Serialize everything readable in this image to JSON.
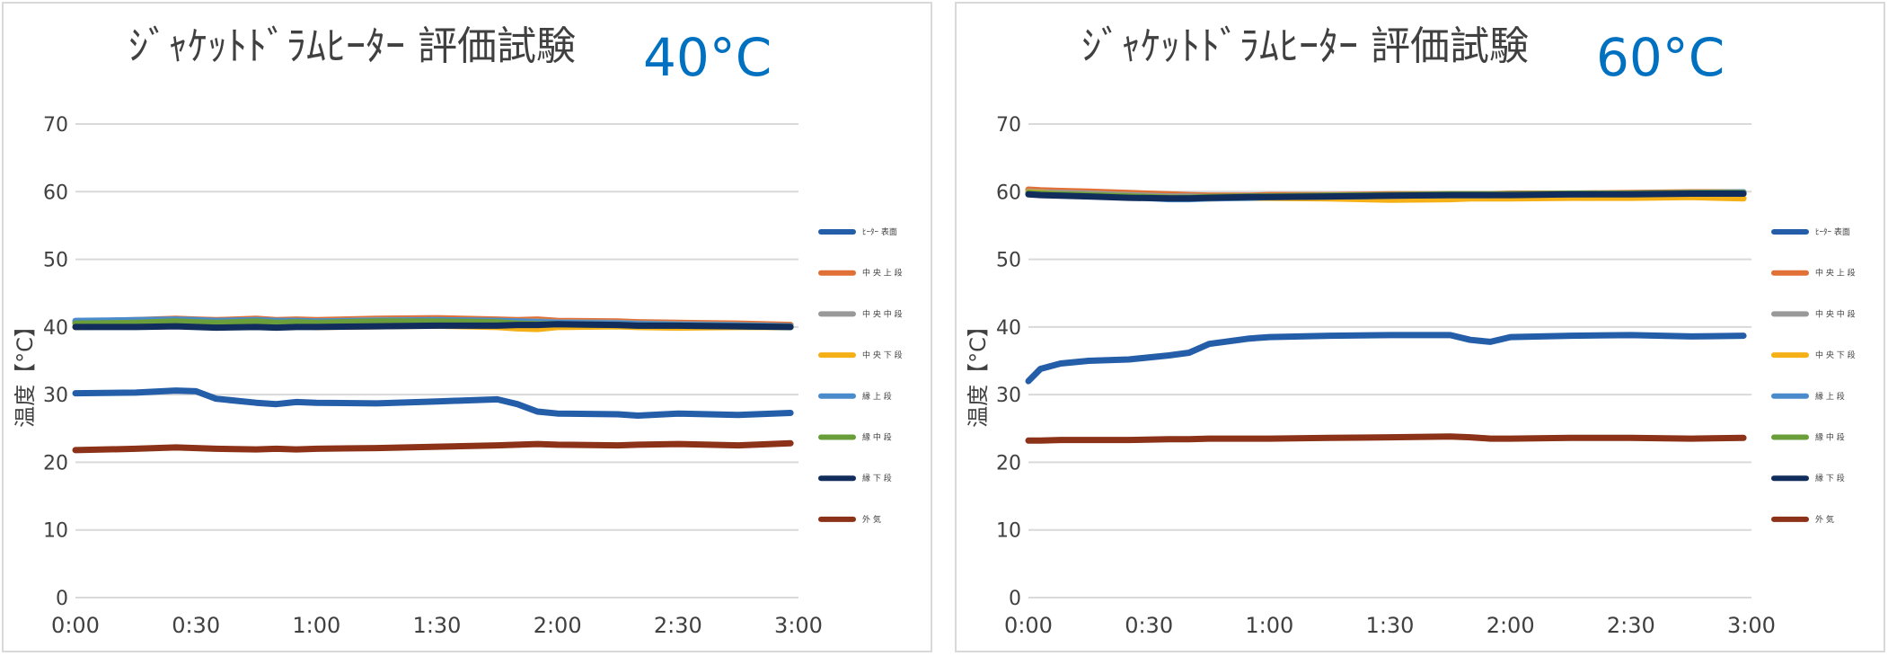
{
  "chart_data": [
    {
      "type": "line",
      "title": "ｼﾞｬｹｯﾄﾄﾞﾗﾑﾋｰﾀｰ 評価試験",
      "title_temp": "40°C",
      "ylabel": "温度【°C】",
      "xlabel": "",
      "ylim": [
        0,
        70
      ],
      "y_ticks": [
        "0",
        "10",
        "20",
        "30",
        "40",
        "50",
        "60",
        "70"
      ],
      "x_ticks": [
        "0:00",
        "0:30",
        "1:00",
        "1:30",
        "2:00",
        "2:30",
        "3:00"
      ],
      "xlim_minutes": [
        0,
        180
      ],
      "grid": "horizontal",
      "legend_position": "right",
      "x_minutes": [
        0,
        15,
        25,
        30,
        35,
        45,
        50,
        55,
        60,
        75,
        90,
        105,
        110,
        115,
        120,
        135,
        140,
        150,
        165,
        178
      ],
      "series": [
        {
          "name": "ﾋｰﾀｰ 表面",
          "color": "#255ea8",
          "values": [
            30.2,
            30.3,
            30.6,
            30.5,
            29.4,
            28.8,
            28.6,
            28.9,
            28.8,
            28.7,
            29.0,
            29.3,
            28.6,
            27.5,
            27.2,
            27.1,
            26.9,
            27.2,
            27.0,
            27.3
          ]
        },
        {
          "name": "中 央 上 段",
          "color": "#e07035",
          "values": [
            40.8,
            41.0,
            41.2,
            41.1,
            41.0,
            41.2,
            41.0,
            41.1,
            41.0,
            41.2,
            41.3,
            41.1,
            41.0,
            41.1,
            40.9,
            40.8,
            40.7,
            40.6,
            40.5,
            40.3
          ]
        },
        {
          "name": "中 央 中 段",
          "color": "#999999",
          "values": [
            40.6,
            40.8,
            41.0,
            40.9,
            40.8,
            41.0,
            40.8,
            40.9,
            40.8,
            41.0,
            41.0,
            40.9,
            40.8,
            40.8,
            40.7,
            40.6,
            40.5,
            40.4,
            40.3,
            40.1
          ]
        },
        {
          "name": "中 央 下 段",
          "color": "#f5b017",
          "values": [
            40.0,
            40.2,
            40.4,
            40.3,
            40.2,
            40.3,
            40.1,
            40.2,
            40.0,
            40.1,
            40.2,
            40.0,
            39.8,
            39.7,
            40.0,
            40.1,
            40.0,
            39.9,
            40.0,
            40.0
          ]
        },
        {
          "name": "縁 上 段",
          "color": "#4a8bcc",
          "values": [
            40.9,
            41.0,
            41.1,
            41.0,
            40.9,
            41.0,
            40.9,
            40.9,
            40.8,
            40.9,
            41.0,
            40.9,
            40.8,
            40.7,
            40.6,
            40.5,
            40.4,
            40.3,
            40.2,
            40.1
          ]
        },
        {
          "name": "縁 中 段",
          "color": "#6a9e3a",
          "values": [
            40.5,
            40.6,
            40.8,
            40.7,
            40.6,
            40.8,
            40.6,
            40.7,
            40.6,
            40.8,
            40.8,
            40.7,
            40.5,
            40.4,
            40.4,
            40.3,
            40.2,
            40.2,
            40.1,
            40.0
          ]
        },
        {
          "name": "縁 下 段",
          "color": "#112d5c",
          "values": [
            40.0,
            40.0,
            40.1,
            40.0,
            39.9,
            40.0,
            39.9,
            40.0,
            40.0,
            40.1,
            40.2,
            40.2,
            40.3,
            40.3,
            40.4,
            40.3,
            40.2,
            40.2,
            40.1,
            40.0
          ]
        },
        {
          "name": "外 気",
          "color": "#8b3218",
          "values": [
            21.8,
            22.0,
            22.2,
            22.1,
            22.0,
            21.9,
            22.0,
            21.9,
            22.0,
            22.1,
            22.3,
            22.5,
            22.6,
            22.7,
            22.6,
            22.5,
            22.6,
            22.7,
            22.5,
            22.8
          ]
        }
      ]
    },
    {
      "type": "line",
      "title": "ｼﾞｬｹｯﾄﾄﾞﾗﾑﾋｰﾀｰ 評価試験",
      "title_temp": "60°C",
      "ylabel": "温度【°C】",
      "xlabel": "",
      "ylim": [
        0,
        70
      ],
      "y_ticks": [
        "0",
        "10",
        "20",
        "30",
        "40",
        "50",
        "60",
        "70"
      ],
      "x_ticks": [
        "0:00",
        "0:30",
        "1:00",
        "1:30",
        "2:00",
        "2:30",
        "3:00"
      ],
      "xlim_minutes": [
        0,
        180
      ],
      "grid": "horizontal",
      "legend_position": "right",
      "x_minutes": [
        0,
        3,
        8,
        15,
        25,
        35,
        40,
        45,
        55,
        60,
        75,
        90,
        105,
        110,
        115,
        120,
        135,
        150,
        165,
        178
      ],
      "series": [
        {
          "name": "ﾋｰﾀｰ 表面",
          "color": "#255ea8",
          "values": [
            32.0,
            33.8,
            34.6,
            35.0,
            35.2,
            35.8,
            36.2,
            37.5,
            38.3,
            38.5,
            38.7,
            38.8,
            38.8,
            38.1,
            37.8,
            38.5,
            38.7,
            38.8,
            38.6,
            38.7
          ]
        },
        {
          "name": "中 央 上 段",
          "color": "#e07035",
          "values": [
            60.3,
            60.2,
            60.1,
            60.0,
            59.8,
            59.6,
            59.5,
            59.4,
            59.4,
            59.5,
            59.5,
            59.6,
            59.6,
            59.6,
            59.6,
            59.7,
            59.7,
            59.8,
            59.9,
            59.9
          ]
        },
        {
          "name": "中 央 中 段",
          "color": "#999999",
          "values": [
            60.0,
            59.9,
            59.8,
            59.7,
            59.5,
            59.3,
            59.3,
            59.2,
            59.3,
            59.3,
            59.4,
            59.4,
            59.5,
            59.5,
            59.5,
            59.5,
            59.6,
            59.6,
            59.7,
            59.7
          ]
        },
        {
          "name": "中 央 下 段",
          "color": "#f5b017",
          "values": [
            59.9,
            59.8,
            59.6,
            59.5,
            59.3,
            59.1,
            59.0,
            59.0,
            59.1,
            59.1,
            59.0,
            58.8,
            58.9,
            59.0,
            59.0,
            59.0,
            59.1,
            59.1,
            59.2,
            59.0
          ]
        },
        {
          "name": "縁 上 段",
          "color": "#4a8bcc",
          "values": [
            59.7,
            59.6,
            59.5,
            59.4,
            59.2,
            58.9,
            58.9,
            59.0,
            59.1,
            59.2,
            59.3,
            59.4,
            59.5,
            59.5,
            59.5,
            59.6,
            59.6,
            59.7,
            59.8,
            59.9
          ]
        },
        {
          "name": "縁 中 段",
          "color": "#6a9e3a",
          "values": [
            59.8,
            59.7,
            59.6,
            59.5,
            59.3,
            59.1,
            59.1,
            59.2,
            59.3,
            59.3,
            59.4,
            59.5,
            59.6,
            59.6,
            59.6,
            59.6,
            59.7,
            59.7,
            59.8,
            59.8
          ]
        },
        {
          "name": "縁 下 段",
          "color": "#112d5c",
          "values": [
            59.6,
            59.5,
            59.4,
            59.3,
            59.1,
            59.0,
            59.0,
            59.1,
            59.2,
            59.2,
            59.3,
            59.4,
            59.5,
            59.5,
            59.5,
            59.5,
            59.6,
            59.6,
            59.7,
            59.7
          ]
        },
        {
          "name": "外 気",
          "color": "#8b3218",
          "values": [
            23.2,
            23.2,
            23.3,
            23.3,
            23.3,
            23.4,
            23.4,
            23.5,
            23.5,
            23.5,
            23.6,
            23.7,
            23.8,
            23.7,
            23.5,
            23.5,
            23.6,
            23.6,
            23.5,
            23.6
          ]
        }
      ]
    }
  ]
}
